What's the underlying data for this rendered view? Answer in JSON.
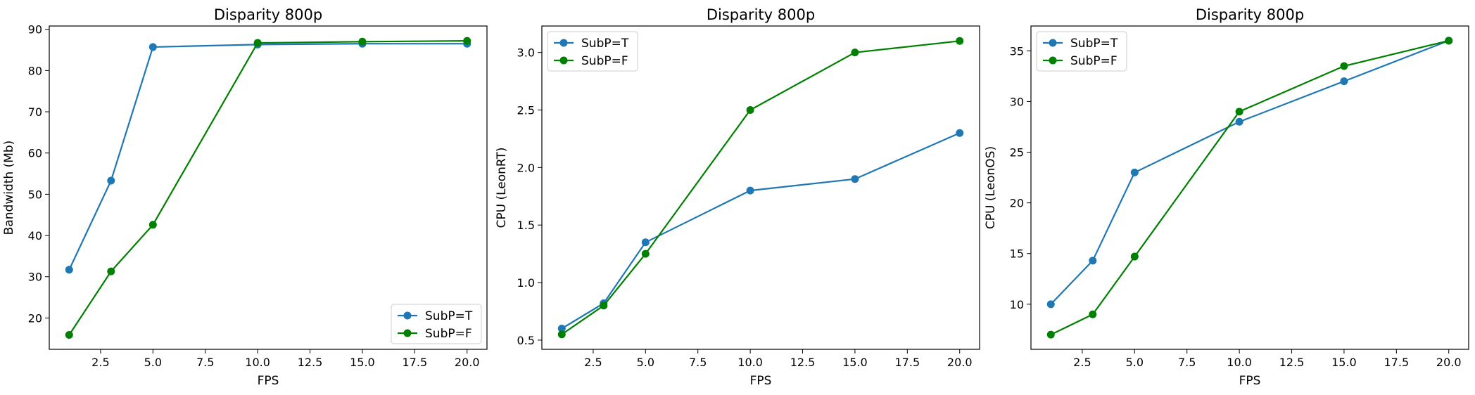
{
  "chart_data": [
    {
      "type": "line",
      "title": "Disparity 800p",
      "xlabel": "FPS",
      "ylabel": "Bandwidth (Mb)",
      "xlim": [
        0.05,
        20.95
      ],
      "ylim": [
        12.4,
        90.8
      ],
      "xticks": [
        "2.5",
        "5.0",
        "7.5",
        "10.0",
        "12.5",
        "15.0",
        "17.5",
        "20.0"
      ],
      "yticks": [
        "20",
        "30",
        "40",
        "50",
        "60",
        "70",
        "80",
        "90"
      ],
      "grid": false,
      "legend_position": "lower-right",
      "series": [
        {
          "name": "SubP=T",
          "color": "#1f77b4",
          "x": [
            1,
            3,
            5,
            10,
            15,
            20
          ],
          "y": [
            31.7,
            53.3,
            85.7,
            86.3,
            86.5,
            86.5
          ]
        },
        {
          "name": "SubP=F",
          "color": "#008000",
          "x": [
            1,
            3,
            5,
            10,
            15,
            20
          ],
          "y": [
            15.9,
            31.3,
            42.6,
            86.7,
            87.0,
            87.2
          ]
        }
      ]
    },
    {
      "type": "line",
      "title": "Disparity 800p",
      "xlabel": "FPS",
      "ylabel": "CPU (LeonRT)",
      "xlim": [
        0.05,
        20.95
      ],
      "ylim": [
        0.42,
        3.23
      ],
      "xticks": [
        "2.5",
        "5.0",
        "7.5",
        "10.0",
        "12.5",
        "15.0",
        "17.5",
        "20.0"
      ],
      "yticks": [
        "0.5",
        "1.0",
        "1.5",
        "2.0",
        "2.5",
        "3.0"
      ],
      "grid": false,
      "legend_position": "upper-left",
      "series": [
        {
          "name": "SubP=T",
          "color": "#1f77b4",
          "x": [
            1,
            3,
            5,
            10,
            15,
            20
          ],
          "y": [
            0.6,
            0.82,
            1.35,
            1.8,
            1.9,
            2.3
          ]
        },
        {
          "name": "SubP=F",
          "color": "#008000",
          "x": [
            1,
            3,
            5,
            10,
            15,
            20
          ],
          "y": [
            0.55,
            0.8,
            1.25,
            2.5,
            3.0,
            3.1
          ]
        }
      ]
    },
    {
      "type": "line",
      "title": "Disparity 800p",
      "xlabel": "FPS",
      "ylabel": "CPU (LeonOS)",
      "xlim": [
        0.05,
        20.95
      ],
      "ylim": [
        5.55,
        37.45
      ],
      "xticks": [
        "2.5",
        "5.0",
        "7.5",
        "10.0",
        "12.5",
        "15.0",
        "17.5",
        "20.0"
      ],
      "yticks": [
        "10",
        "15",
        "20",
        "25",
        "30",
        "35"
      ],
      "grid": false,
      "legend_position": "upper-left",
      "series": [
        {
          "name": "SubP=T",
          "color": "#1f77b4",
          "x": [
            1,
            3,
            5,
            10,
            15,
            20
          ],
          "y": [
            10.0,
            14.3,
            23.0,
            28.0,
            32.0,
            36.0
          ]
        },
        {
          "name": "SubP=F",
          "color": "#008000",
          "x": [
            1,
            3,
            5,
            10,
            15,
            20
          ],
          "y": [
            7.0,
            9.0,
            14.7,
            29.0,
            33.5,
            36.0
          ]
        }
      ]
    }
  ]
}
